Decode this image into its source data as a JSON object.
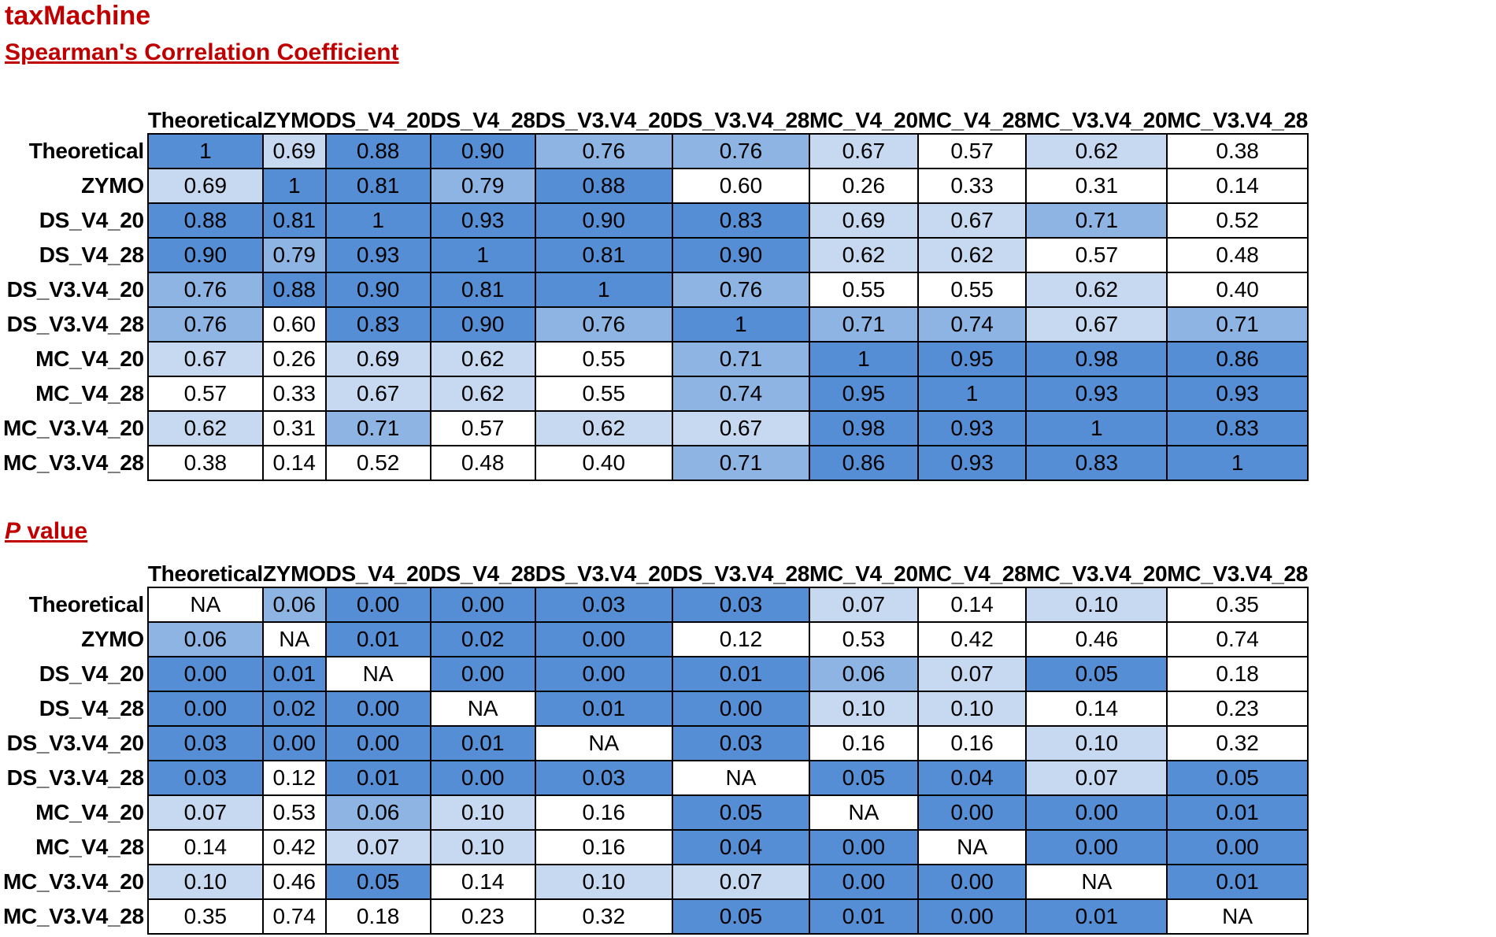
{
  "title": "taxMachine",
  "colors": {
    "level_0": "#ffffff",
    "level_1": "#c6d9f1",
    "level_2": "#8eb4e3",
    "level_3": "#558ed5",
    "title_color": "#c00000"
  },
  "chart_data": [
    {
      "type": "heatmap",
      "title": "Spearman's Correlation Coefficient",
      "rows": [
        "Theoretical",
        "ZYMO",
        "DS_V4_20",
        "DS_V4_28",
        "DS_V3.V4_20",
        "DS_V3.V4_28",
        "MC_V4_20",
        "MC_V4_28",
        "MC_V3.V4_20",
        "MC_V3.V4_28"
      ],
      "columns": [
        "Theoretical",
        "ZYMO",
        "DS_V4_20",
        "DS_V4_28",
        "DS_V3.V4_20",
        "DS_V3.V4_28",
        "MC_V4_20",
        "MC_V4_28",
        "MC_V3.V4_20",
        "MC_V3.V4_28"
      ],
      "values": [
        [
          "1",
          "0.69",
          "0.88",
          "0.90",
          "0.76",
          "0.76",
          "0.67",
          "0.57",
          "0.62",
          "0.38"
        ],
        [
          "0.69",
          "1",
          "0.81",
          "0.79",
          "0.88",
          "0.60",
          "0.26",
          "0.33",
          "0.31",
          "0.14"
        ],
        [
          "0.88",
          "0.81",
          "1",
          "0.93",
          "0.90",
          "0.83",
          "0.69",
          "0.67",
          "0.71",
          "0.52"
        ],
        [
          "0.90",
          "0.79",
          "0.93",
          "1",
          "0.81",
          "0.90",
          "0.62",
          "0.62",
          "0.57",
          "0.48"
        ],
        [
          "0.76",
          "0.88",
          "0.90",
          "0.81",
          "1",
          "0.76",
          "0.55",
          "0.55",
          "0.62",
          "0.40"
        ],
        [
          "0.76",
          "0.60",
          "0.83",
          "0.90",
          "0.76",
          "1",
          "0.71",
          "0.74",
          "0.67",
          "0.71"
        ],
        [
          "0.67",
          "0.26",
          "0.69",
          "0.62",
          "0.55",
          "0.71",
          "1",
          "0.95",
          "0.98",
          "0.86"
        ],
        [
          "0.57",
          "0.33",
          "0.67",
          "0.62",
          "0.55",
          "0.74",
          "0.95",
          "1",
          "0.93",
          "0.93"
        ],
        [
          "0.62",
          "0.31",
          "0.71",
          "0.57",
          "0.62",
          "0.67",
          "0.98",
          "0.93",
          "1",
          "0.83"
        ],
        [
          "0.38",
          "0.14",
          "0.52",
          "0.48",
          "0.40",
          "0.71",
          "0.86",
          "0.93",
          "0.83",
          "1"
        ]
      ],
      "color_levels": [
        [
          3,
          1,
          3,
          3,
          2,
          2,
          1,
          0,
          1,
          0
        ],
        [
          1,
          3,
          3,
          2,
          3,
          0,
          0,
          0,
          0,
          0
        ],
        [
          3,
          3,
          3,
          3,
          3,
          3,
          1,
          1,
          2,
          0
        ],
        [
          3,
          2,
          3,
          3,
          3,
          3,
          1,
          1,
          0,
          0
        ],
        [
          2,
          3,
          3,
          3,
          3,
          2,
          0,
          0,
          1,
          0
        ],
        [
          2,
          0,
          3,
          3,
          2,
          3,
          2,
          2,
          1,
          2
        ],
        [
          1,
          0,
          1,
          1,
          0,
          2,
          3,
          3,
          3,
          3
        ],
        [
          0,
          0,
          1,
          1,
          0,
          2,
          3,
          3,
          3,
          3
        ],
        [
          1,
          0,
          2,
          0,
          1,
          1,
          3,
          3,
          3,
          3
        ],
        [
          0,
          0,
          0,
          0,
          0,
          2,
          3,
          3,
          3,
          3
        ]
      ]
    },
    {
      "type": "heatmap",
      "title_prefix": "P",
      "title": " value",
      "rows": [
        "Theoretical",
        "ZYMO",
        "DS_V4_20",
        "DS_V4_28",
        "DS_V3.V4_20",
        "DS_V3.V4_28",
        "MC_V4_20",
        "MC_V4_28",
        "MC_V3.V4_20",
        "MC_V3.V4_28"
      ],
      "columns": [
        "Theoretical",
        "ZYMO",
        "DS_V4_20",
        "DS_V4_28",
        "DS_V3.V4_20",
        "DS_V3.V4_28",
        "MC_V4_20",
        "MC_V4_28",
        "MC_V3.V4_20",
        "MC_V3.V4_28"
      ],
      "values": [
        [
          "NA",
          "0.06",
          "0.00",
          "0.00",
          "0.03",
          "0.03",
          "0.07",
          "0.14",
          "0.10",
          "0.35"
        ],
        [
          "0.06",
          "NA",
          "0.01",
          "0.02",
          "0.00",
          "0.12",
          "0.53",
          "0.42",
          "0.46",
          "0.74"
        ],
        [
          "0.00",
          "0.01",
          "NA",
          "0.00",
          "0.00",
          "0.01",
          "0.06",
          "0.07",
          "0.05",
          "0.18"
        ],
        [
          "0.00",
          "0.02",
          "0.00",
          "NA",
          "0.01",
          "0.00",
          "0.10",
          "0.10",
          "0.14",
          "0.23"
        ],
        [
          "0.03",
          "0.00",
          "0.00",
          "0.01",
          "NA",
          "0.03",
          "0.16",
          "0.16",
          "0.10",
          "0.32"
        ],
        [
          "0.03",
          "0.12",
          "0.01",
          "0.00",
          "0.03",
          "NA",
          "0.05",
          "0.04",
          "0.07",
          "0.05"
        ],
        [
          "0.07",
          "0.53",
          "0.06",
          "0.10",
          "0.16",
          "0.05",
          "NA",
          "0.00",
          "0.00",
          "0.01"
        ],
        [
          "0.14",
          "0.42",
          "0.07",
          "0.10",
          "0.16",
          "0.04",
          "0.00",
          "NA",
          "0.00",
          "0.00"
        ],
        [
          "0.10",
          "0.46",
          "0.05",
          "0.14",
          "0.10",
          "0.07",
          "0.00",
          "0.00",
          "NA",
          "0.01"
        ],
        [
          "0.35",
          "0.74",
          "0.18",
          "0.23",
          "0.32",
          "0.05",
          "0.01",
          "0.00",
          "0.01",
          "NA"
        ]
      ],
      "color_levels": [
        [
          0,
          2,
          3,
          3,
          3,
          3,
          1,
          0,
          1,
          0
        ],
        [
          2,
          0,
          3,
          3,
          3,
          0,
          0,
          0,
          0,
          0
        ],
        [
          3,
          3,
          0,
          3,
          3,
          3,
          2,
          1,
          3,
          0
        ],
        [
          3,
          3,
          3,
          0,
          3,
          3,
          1,
          1,
          0,
          0
        ],
        [
          3,
          3,
          3,
          3,
          0,
          3,
          0,
          0,
          1,
          0
        ],
        [
          3,
          0,
          3,
          3,
          3,
          0,
          3,
          3,
          1,
          3
        ],
        [
          1,
          0,
          2,
          1,
          0,
          3,
          0,
          3,
          3,
          3
        ],
        [
          0,
          0,
          1,
          1,
          0,
          3,
          3,
          0,
          3,
          3
        ],
        [
          1,
          0,
          3,
          0,
          1,
          1,
          3,
          3,
          0,
          3
        ],
        [
          0,
          0,
          0,
          0,
          0,
          3,
          3,
          3,
          3,
          0
        ]
      ]
    }
  ]
}
